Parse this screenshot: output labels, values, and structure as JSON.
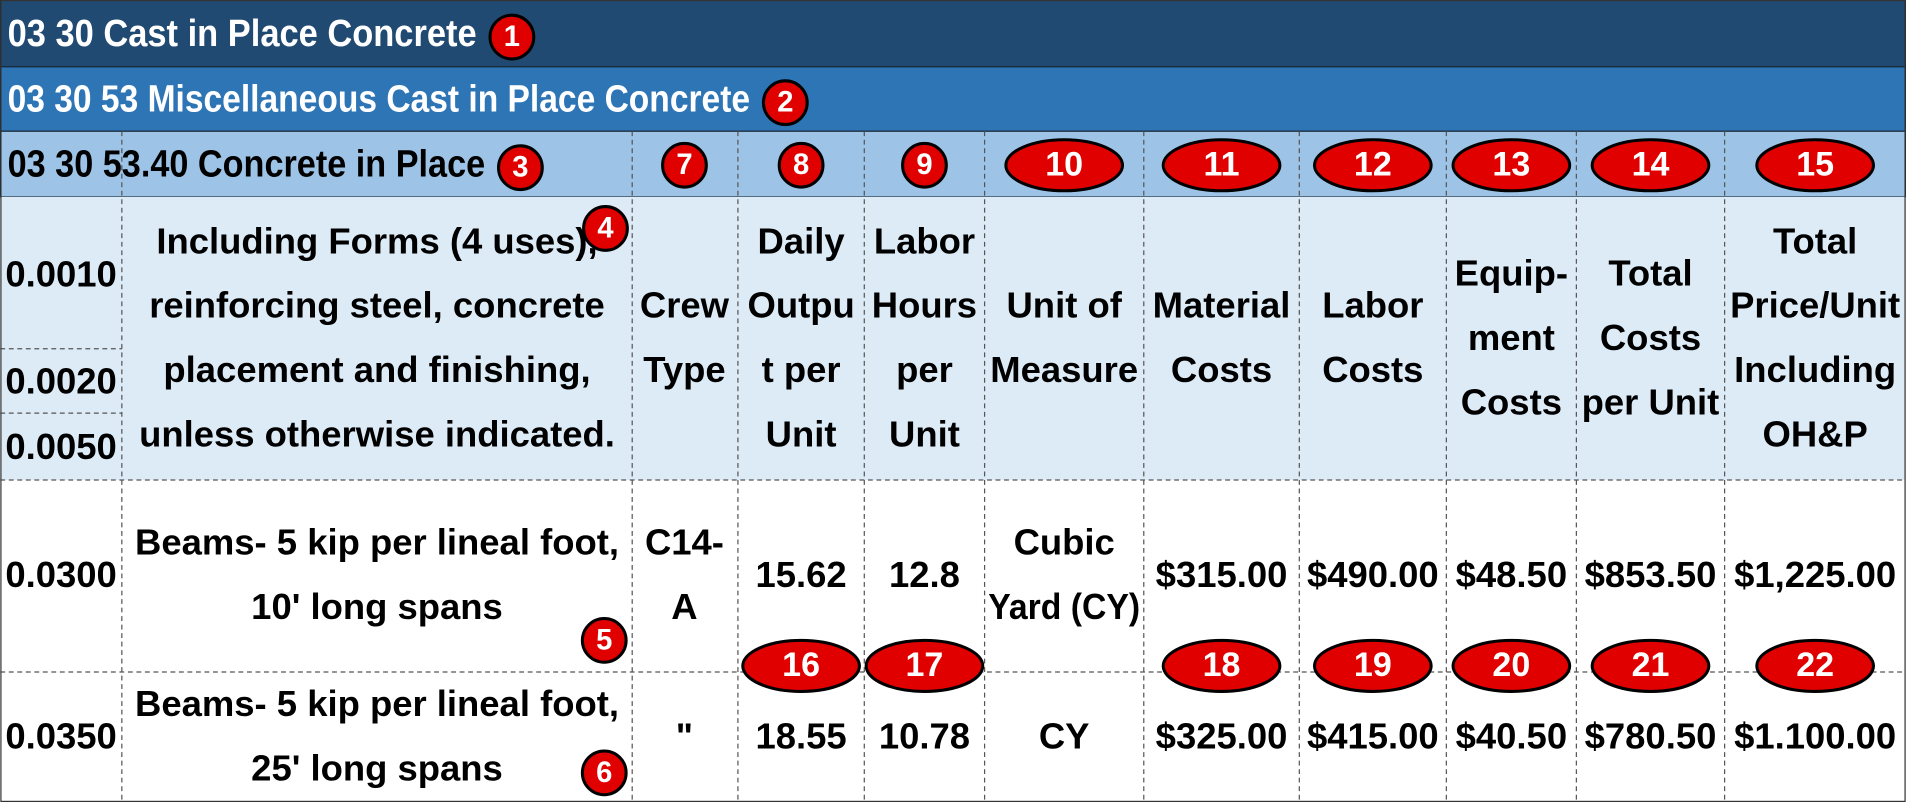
{
  "headings": [
    {
      "text": "03 30 Cast in Place Concrete",
      "badge": "1"
    },
    {
      "text": "03 30 53 Miscellaneous Cast in Place Concrete",
      "badge": "2"
    },
    {
      "text": "03 30 53.40 Concrete in Place",
      "badge": "3"
    }
  ],
  "column_badges": [
    "7",
    "8",
    "9",
    "10",
    "11",
    "12",
    "13",
    "14",
    "15"
  ],
  "header": {
    "codes": [
      "0.0010",
      "0.0020",
      "0.0050"
    ],
    "description": [
      "Including Forms (4 uses),",
      "reinforcing steel, concrete",
      "placement and finishing,",
      "unless otherwise indicated."
    ],
    "badge": "4",
    "columns": [
      [
        "Crew",
        "Type"
      ],
      [
        "Daily",
        "Outpu",
        "t per",
        "Unit"
      ],
      [
        "Labor",
        "Hours",
        "per",
        "Unit"
      ],
      [
        "Unit of",
        "Measure"
      ],
      [
        "Material",
        "Costs"
      ],
      [
        "Labor",
        "Costs"
      ],
      [
        "Equip-",
        "ment",
        "Costs"
      ],
      [
        "Total",
        "Costs",
        "per Unit"
      ],
      [
        "Total",
        "Price/Unit",
        "Including",
        "OH&P"
      ]
    ]
  },
  "rows": [
    {
      "code": "0.0300",
      "description": [
        "Beams- 5 kip per lineal foot,",
        "10' long spans"
      ],
      "badge": "5",
      "cells": [
        [
          "C14-",
          "A"
        ],
        [
          "15.62"
        ],
        [
          "12.8"
        ],
        [
          "Cubic",
          "Yard (CY)"
        ],
        [
          "$315.00"
        ],
        [
          "$490.00"
        ],
        [
          "$48.50"
        ],
        [
          "$853.50"
        ],
        [
          "$1,225.00"
        ]
      ]
    },
    {
      "code": "0.0350",
      "description": [
        "Beams- 5 kip per lineal foot,",
        "25' long spans"
      ],
      "badge": "6",
      "cells": [
        [
          "\""
        ],
        [
          "18.55"
        ],
        [
          "10.78"
        ],
        [
          "CY"
        ],
        [
          "$325.00"
        ],
        [
          "$415.00"
        ],
        [
          "$40.50"
        ],
        [
          "$780.50"
        ],
        [
          "$1.100.00"
        ]
      ]
    }
  ],
  "row_badges": [
    "16",
    "17",
    "18",
    "19",
    "20",
    "21",
    "22"
  ]
}
